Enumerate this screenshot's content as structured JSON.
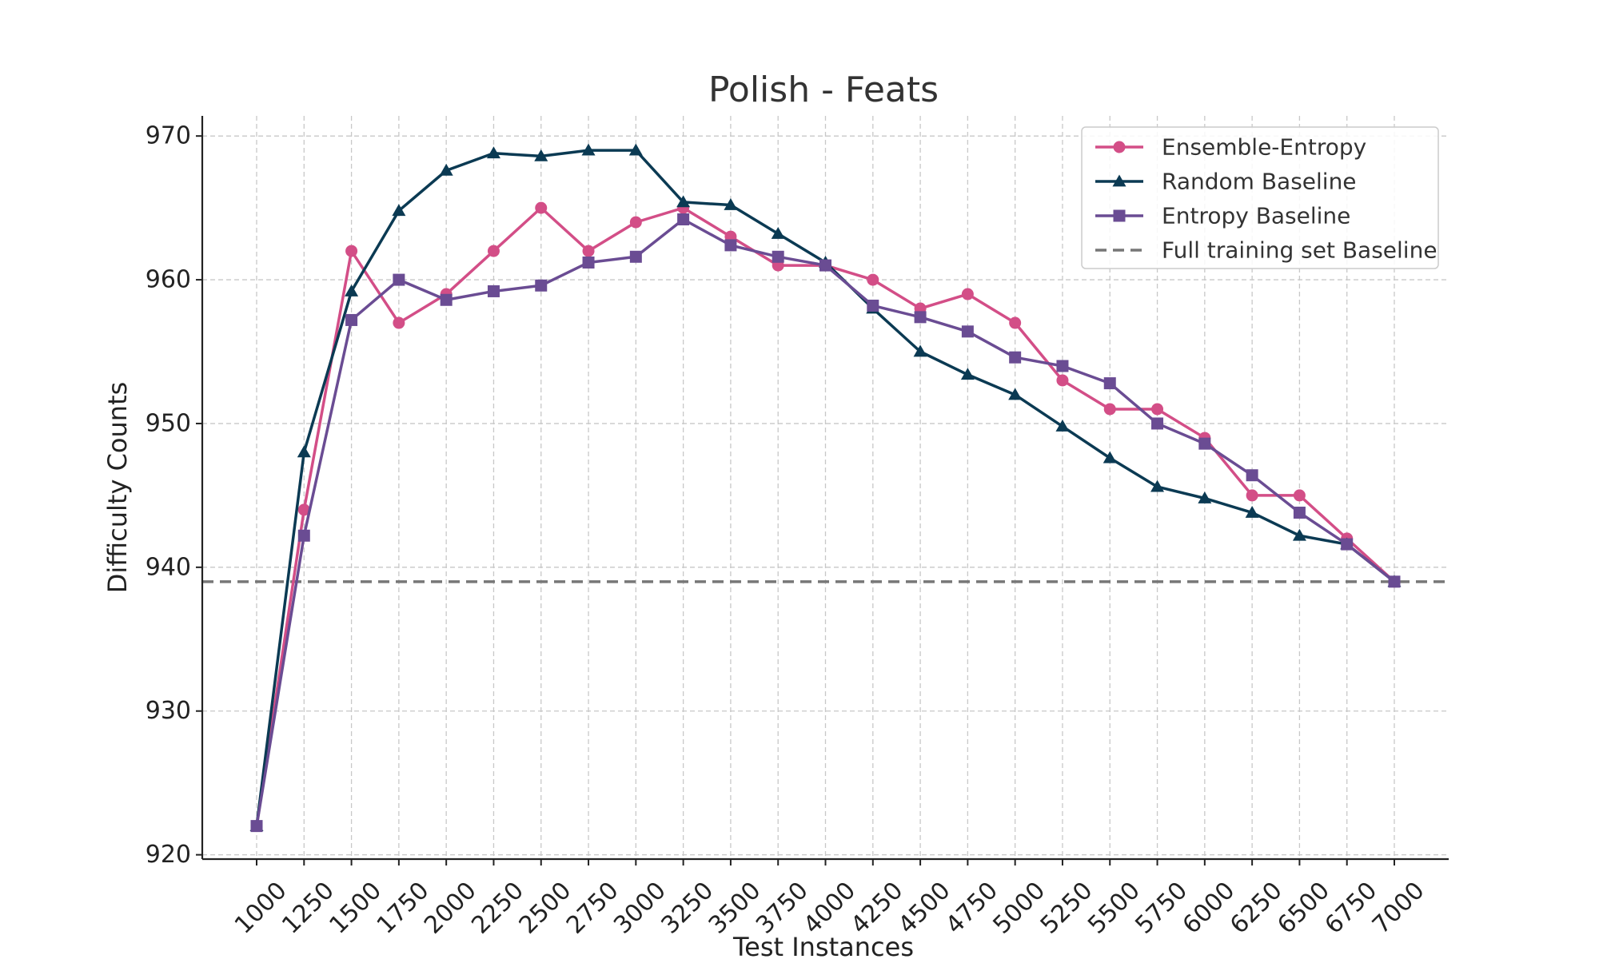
{
  "chart_data": {
    "type": "line",
    "title": "Polish - Feats",
    "xlabel": "Test Instances",
    "ylabel": "Difficulty Counts",
    "x": [
      1000,
      1250,
      1500,
      1750,
      2000,
      2250,
      2500,
      2750,
      3000,
      3250,
      3500,
      3750,
      4000,
      4250,
      4500,
      4750,
      5000,
      5250,
      5500,
      5750,
      6000,
      6250,
      6500,
      6750,
      7000
    ],
    "x_tick_labels": [
      "1000",
      "1250",
      "1500",
      "1750",
      "2000",
      "2250",
      "2500",
      "2750",
      "3000",
      "3250",
      "3500",
      "3750",
      "4000",
      "4250",
      "4500",
      "4750",
      "5000",
      "5250",
      "5500",
      "5750",
      "6000",
      "6250",
      "6500",
      "6750",
      "7000"
    ],
    "ylim": [
      919.7,
      971.4
    ],
    "y_ticks": [
      920,
      930,
      940,
      950,
      960,
      970
    ],
    "y_tick_labels": [
      "920",
      "930",
      "940",
      "950",
      "960",
      "970"
    ],
    "grid": true,
    "legend_position": "top-right",
    "series": [
      {
        "name": "Ensemble-Entropy",
        "color": "#d34e87",
        "marker": "circle",
        "values": [
          922,
          944,
          962,
          957,
          959,
          962,
          965,
          962,
          964,
          965,
          963,
          961,
          961,
          960,
          958,
          959,
          957,
          953,
          951,
          951,
          949,
          945,
          945,
          942,
          939
        ]
      },
      {
        "name": "Random Baseline",
        "color": "#0b3a53",
        "marker": "triangle",
        "values": [
          922,
          948,
          959.2,
          964.8,
          967.6,
          968.8,
          968.6,
          969,
          969,
          965.4,
          965.2,
          963.2,
          961.2,
          958,
          955,
          953.4,
          952,
          949.8,
          947.6,
          945.6,
          944.8,
          943.8,
          942.2,
          941.6,
          939
        ]
      },
      {
        "name": "Entropy Baseline",
        "color": "#6a4c93",
        "marker": "square",
        "values": [
          922,
          942.2,
          957.2,
          960,
          958.6,
          959.2,
          959.6,
          961.2,
          961.6,
          964.2,
          962.4,
          961.6,
          961,
          958.2,
          957.4,
          956.4,
          954.6,
          954,
          952.8,
          950,
          948.6,
          946.4,
          943.8,
          941.6,
          939
        ]
      }
    ],
    "reference_lines": [
      {
        "name": "Full training set Baseline",
        "value": 939,
        "color": "#777777",
        "style": "dashed"
      }
    ]
  }
}
